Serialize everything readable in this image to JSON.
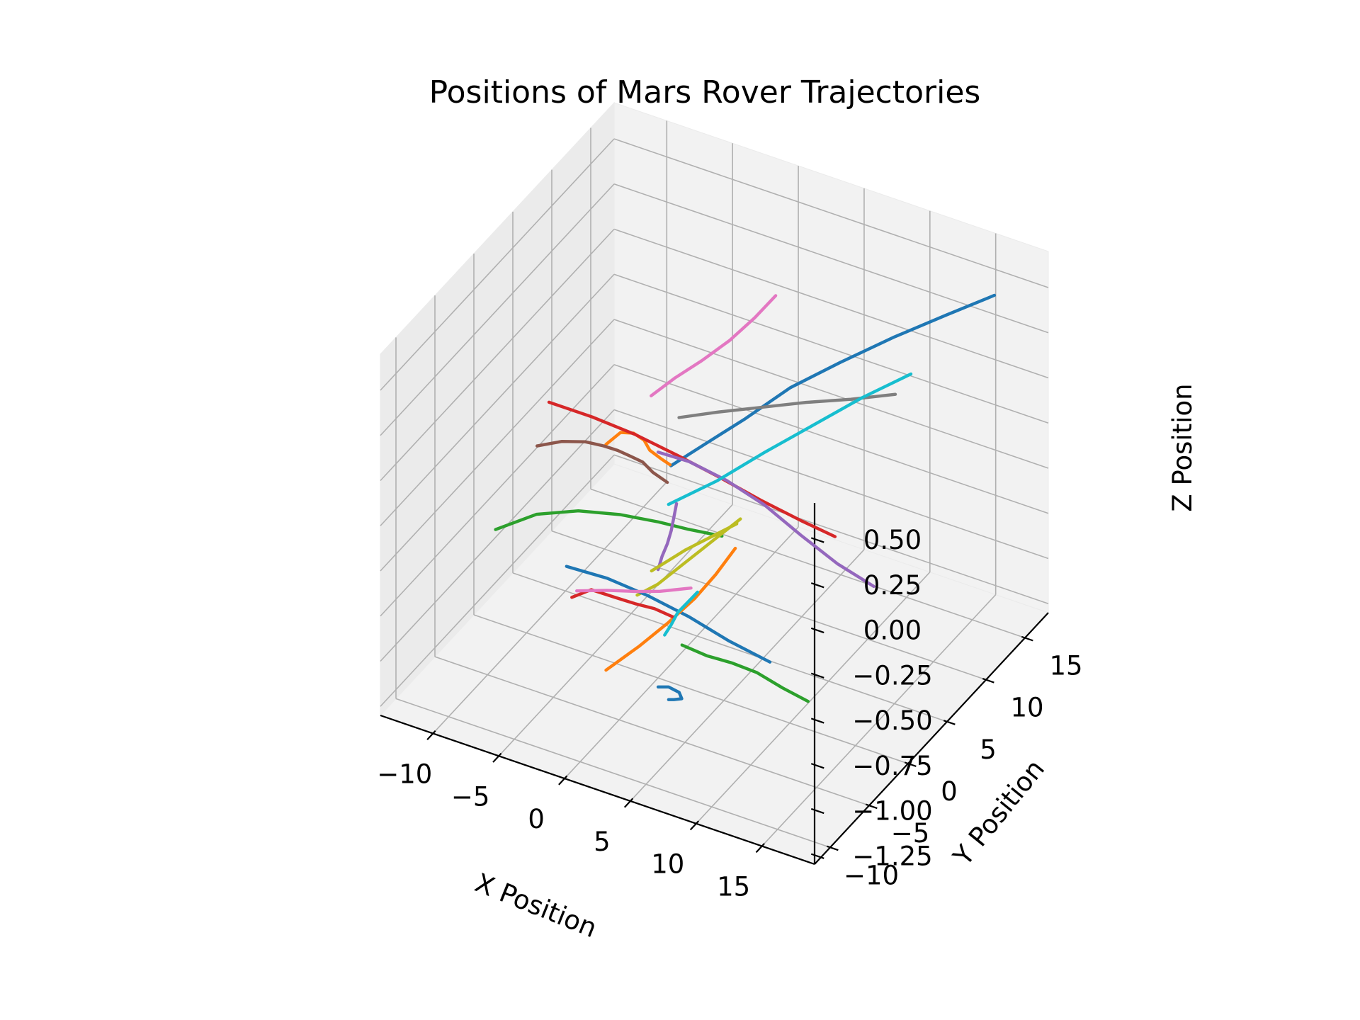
{
  "chart_data": {
    "type": "line",
    "projection": "3d",
    "title": "Positions of Mars Rover Trajectories",
    "xlabel": "X Position",
    "ylabel": "Y Position",
    "zlabel": "Z Position",
    "xlim": [
      -14,
      19
    ],
    "ylim": [
      -12,
      18
    ],
    "zlim": [
      -1.3,
      0.7
    ],
    "x_ticks": [
      -10,
      -5,
      0,
      5,
      10,
      15
    ],
    "y_ticks": [
      -10,
      -5,
      0,
      5,
      10,
      15
    ],
    "z_ticks": [
      -1.25,
      -1.0,
      -0.75,
      -0.5,
      -0.25,
      0.0,
      0.25,
      0.5
    ],
    "x_tick_labels": [
      "−10",
      "−5",
      "0",
      "5",
      "10",
      "15"
    ],
    "y_tick_labels": [
      "−10",
      "−5",
      "0",
      "5",
      "10",
      "15"
    ],
    "z_tick_labels": [
      "−1.25",
      "−1.00",
      "−0.75",
      "−0.50",
      "−0.25",
      "0.00",
      "0.25",
      "0.50"
    ],
    "grid": true,
    "series": [
      {
        "color": "#1f77b4",
        "x": [
          0.5,
          2.3,
          4.2,
          6.4,
          8.9,
          11.6,
          14.2,
          16.5
        ],
        "y": [
          0.8,
          2.3,
          4.1,
          6.2,
          8.4,
          10.7,
          13.0,
          15.3
        ],
        "z": [
          -0.15,
          -0.05,
          0.05,
          0.18,
          0.28,
          0.38,
          0.46,
          0.52
        ]
      },
      {
        "color": "#ff7f0e",
        "x": [
          -1.0,
          -0.6,
          -0.2,
          0.0,
          -0.1,
          0.2,
          0.5
        ],
        "y": [
          -5.0,
          -3.8,
          -2.8,
          -1.8,
          -0.9,
          0.0,
          0.7
        ],
        "z": [
          0.2,
          0.22,
          0.18,
          0.1,
          0.0,
          -0.08,
          -0.14
        ]
      },
      {
        "color": "#2ca02c",
        "x": [
          -12.0,
          -9.0,
          -6.0,
          -3.0,
          -0.2,
          2.0,
          4.5
        ],
        "y": [
          -0.6,
          -0.4,
          -0.1,
          0.2,
          0.4,
          0.5,
          0.6
        ],
        "z": [
          -0.75,
          -0.6,
          -0.52,
          -0.48,
          -0.46,
          -0.45,
          -0.43
        ]
      },
      {
        "color": "#d62728",
        "x": [
          -8.0,
          -5.0,
          -2.0,
          1.0,
          4.0,
          7.0,
          10.0,
          12.5
        ],
        "y": [
          -0.5,
          0.0,
          0.4,
          0.8,
          1.1,
          1.3,
          1.5,
          1.6
        ],
        "z": [
          0.05,
          0.02,
          -0.02,
          -0.08,
          -0.14,
          -0.2,
          -0.25,
          -0.28
        ]
      },
      {
        "color": "#9467bd",
        "x": [
          0.0,
          2.0,
          4.5,
          7.0,
          9.5,
          12.0,
          14.5
        ],
        "y": [
          0.0,
          0.6,
          1.2,
          1.8,
          2.3,
          2.8,
          3.2
        ],
        "z": [
          -0.05,
          -0.08,
          -0.15,
          -0.25,
          -0.38,
          -0.5,
          -0.58
        ]
      },
      {
        "color": "#8c564b",
        "x": [
          -1.5,
          -0.8,
          -0.2,
          0.3,
          0.5,
          0.6,
          0.6,
          0.5,
          0.7
        ],
        "y": [
          -13.0,
          -11.0,
          -9.0,
          -7.5,
          -6.0,
          -4.5,
          -3.0,
          -1.5,
          0.0
        ],
        "z": [
          0.55,
          0.5,
          0.42,
          0.34,
          0.25,
          0.15,
          0.05,
          -0.08,
          -0.2
        ]
      },
      {
        "color": "#e377c2",
        "x": [
          -1.0,
          0.0,
          1.2,
          2.5,
          3.5,
          4.2
        ],
        "y": [
          0.8,
          2.2,
          3.6,
          5.0,
          6.5,
          8.0
        ],
        "z": [
          0.2,
          0.26,
          0.32,
          0.4,
          0.48,
          0.55
        ]
      },
      {
        "color": "#7f7f7f",
        "x": [
          1.0,
          3.0,
          5.5,
          8.0,
          10.5,
          13.0
        ],
        "y": [
          1.0,
          2.5,
          4.0,
          5.5,
          7.0,
          8.5
        ],
        "z": [
          0.12,
          0.13,
          0.15,
          0.17,
          0.18,
          0.2
        ]
      },
      {
        "color": "#bcbd22",
        "x": [
          -1.0,
          -0.2,
          0.6,
          1.4,
          2.2,
          3.0
        ],
        "y": [
          -1.0,
          0.3,
          1.6,
          2.9,
          4.2,
          5.5
        ],
        "z": [
          -0.82,
          -0.8,
          -0.75,
          -0.7,
          -0.65,
          -0.6
        ]
      },
      {
        "color": "#17becf",
        "x": [
          0.5,
          3.0,
          5.5,
          8.0,
          10.5,
          13.0
        ],
        "y": [
          0.5,
          2.5,
          4.5,
          6.5,
          8.5,
          10.5
        ],
        "z": [
          -0.35,
          -0.25,
          -0.12,
          0.0,
          0.12,
          0.22
        ]
      },
      {
        "color": "#1f77b4",
        "x": [
          -4.0,
          -1.5,
          1.0,
          3.5,
          6.0,
          8.5
        ],
        "y": [
          -5.0,
          -4.0,
          -3.0,
          -2.0,
          -1.0,
          0.0
        ],
        "z": [
          -0.55,
          -0.6,
          -0.68,
          -0.78,
          -0.9,
          -1.0
        ]
      },
      {
        "color": "#ff7f0e",
        "x": [
          -1.0,
          0.3,
          1.5,
          2.5,
          3.2,
          3.8
        ],
        "y": [
          -5.0,
          -3.0,
          -1.2,
          0.5,
          2.0,
          3.5
        ],
        "z": [
          -1.05,
          -0.98,
          -0.9,
          -0.82,
          -0.74,
          -0.65
        ]
      },
      {
        "color": "#2ca02c",
        "x": [
          3.0,
          5.0,
          7.0,
          9.0,
          11.0,
          13.0
        ],
        "y": [
          -2.0,
          -2.2,
          -2.4,
          -2.5,
          -2.6,
          -2.7
        ],
        "z": [
          -0.95,
          -0.95,
          -0.93,
          -0.93,
          -0.96,
          -0.98
        ]
      },
      {
        "color": "#d62728",
        "x": [
          -3.0,
          -2.0,
          -0.5,
          0.5,
          1.5,
          2.5
        ],
        "y": [
          -6.0,
          -5.2,
          -4.5,
          -3.8,
          -3.0,
          -2.2
        ],
        "z": [
          -0.65,
          -0.62,
          -0.66,
          -0.7,
          -0.74,
          -0.8
        ]
      },
      {
        "color": "#e377c2",
        "x": [
          -5.0,
          -3.0,
          -1.0,
          0.5,
          1.5,
          2.5
        ],
        "y": [
          -2.0,
          -1.5,
          -1.0,
          -0.6,
          -0.3,
          0.0
        ],
        "z": [
          -0.85,
          -0.82,
          -0.8,
          -0.78,
          -0.76,
          -0.74
        ]
      },
      {
        "color": "#9467bd",
        "x": [
          0.0,
          0.3,
          0.7,
          1.0,
          1.2,
          1.4
        ],
        "y": [
          0.0,
          0.0,
          0.0,
          0.0,
          0.0,
          0.0
        ],
        "z": [
          -0.7,
          -0.62,
          -0.54,
          -0.46,
          -0.38,
          -0.3
        ]
      },
      {
        "color": "#bcbd22",
        "x": [
          -0.5,
          0.5,
          1.5,
          2.5,
          3.5,
          4.5
        ],
        "y": [
          0.0,
          0.5,
          1.0,
          1.5,
          2.0,
          2.5
        ],
        "z": [
          -0.72,
          -0.66,
          -0.6,
          -0.55,
          -0.5,
          -0.45
        ]
      },
      {
        "color": "#17becf",
        "x": [
          0.5,
          1.0,
          1.5,
          2.0,
          2.5,
          3.0
        ],
        "y": [
          0.0,
          0.0,
          0.0,
          0.0,
          0.0,
          0.0
        ],
        "z": [
          -1.05,
          -0.98,
          -0.9,
          -0.85,
          -0.8,
          -0.75
        ]
      },
      {
        "color": "#1f77b4",
        "x": [
          0.0,
          0.8,
          1.6,
          1.8,
          1.2,
          0.8
        ],
        "y": [
          0.0,
          0.0,
          0.0,
          0.0,
          0.0,
          0.0
        ],
        "z": [
          -1.35,
          -1.33,
          -1.34,
          -1.37,
          -1.39,
          -1.4
        ]
      }
    ]
  }
}
